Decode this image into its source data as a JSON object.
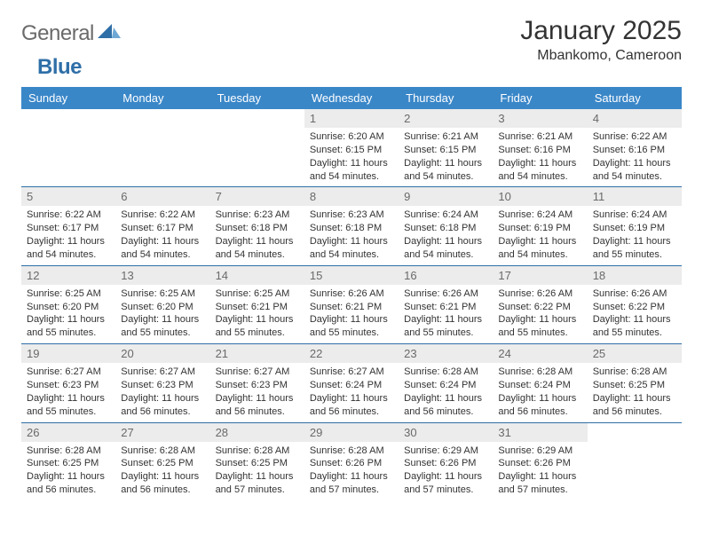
{
  "brand": {
    "word1": "General",
    "word2": "Blue"
  },
  "title": {
    "month": "January 2025",
    "location": "Mbankomo, Cameroon"
  },
  "colors": {
    "header_bg": "#3a87c8",
    "header_text": "#ffffff",
    "daynum_bg": "#ececec",
    "daynum_text": "#6a6a6a",
    "divider": "#2f6fa7",
    "body_text": "#333333",
    "logo_gray": "#6a6a6a",
    "logo_blue": "#2f6fa7"
  },
  "weekdays": [
    "Sunday",
    "Monday",
    "Tuesday",
    "Wednesday",
    "Thursday",
    "Friday",
    "Saturday"
  ],
  "weeks": [
    [
      {
        "n": "",
        "sr": "",
        "ss": "",
        "dl": ""
      },
      {
        "n": "",
        "sr": "",
        "ss": "",
        "dl": ""
      },
      {
        "n": "",
        "sr": "",
        "ss": "",
        "dl": ""
      },
      {
        "n": "1",
        "sr": "Sunrise: 6:20 AM",
        "ss": "Sunset: 6:15 PM",
        "dl": "Daylight: 11 hours and 54 minutes."
      },
      {
        "n": "2",
        "sr": "Sunrise: 6:21 AM",
        "ss": "Sunset: 6:15 PM",
        "dl": "Daylight: 11 hours and 54 minutes."
      },
      {
        "n": "3",
        "sr": "Sunrise: 6:21 AM",
        "ss": "Sunset: 6:16 PM",
        "dl": "Daylight: 11 hours and 54 minutes."
      },
      {
        "n": "4",
        "sr": "Sunrise: 6:22 AM",
        "ss": "Sunset: 6:16 PM",
        "dl": "Daylight: 11 hours and 54 minutes."
      }
    ],
    [
      {
        "n": "5",
        "sr": "Sunrise: 6:22 AM",
        "ss": "Sunset: 6:17 PM",
        "dl": "Daylight: 11 hours and 54 minutes."
      },
      {
        "n": "6",
        "sr": "Sunrise: 6:22 AM",
        "ss": "Sunset: 6:17 PM",
        "dl": "Daylight: 11 hours and 54 minutes."
      },
      {
        "n": "7",
        "sr": "Sunrise: 6:23 AM",
        "ss": "Sunset: 6:18 PM",
        "dl": "Daylight: 11 hours and 54 minutes."
      },
      {
        "n": "8",
        "sr": "Sunrise: 6:23 AM",
        "ss": "Sunset: 6:18 PM",
        "dl": "Daylight: 11 hours and 54 minutes."
      },
      {
        "n": "9",
        "sr": "Sunrise: 6:24 AM",
        "ss": "Sunset: 6:18 PM",
        "dl": "Daylight: 11 hours and 54 minutes."
      },
      {
        "n": "10",
        "sr": "Sunrise: 6:24 AM",
        "ss": "Sunset: 6:19 PM",
        "dl": "Daylight: 11 hours and 54 minutes."
      },
      {
        "n": "11",
        "sr": "Sunrise: 6:24 AM",
        "ss": "Sunset: 6:19 PM",
        "dl": "Daylight: 11 hours and 55 minutes."
      }
    ],
    [
      {
        "n": "12",
        "sr": "Sunrise: 6:25 AM",
        "ss": "Sunset: 6:20 PM",
        "dl": "Daylight: 11 hours and 55 minutes."
      },
      {
        "n": "13",
        "sr": "Sunrise: 6:25 AM",
        "ss": "Sunset: 6:20 PM",
        "dl": "Daylight: 11 hours and 55 minutes."
      },
      {
        "n": "14",
        "sr": "Sunrise: 6:25 AM",
        "ss": "Sunset: 6:21 PM",
        "dl": "Daylight: 11 hours and 55 minutes."
      },
      {
        "n": "15",
        "sr": "Sunrise: 6:26 AM",
        "ss": "Sunset: 6:21 PM",
        "dl": "Daylight: 11 hours and 55 minutes."
      },
      {
        "n": "16",
        "sr": "Sunrise: 6:26 AM",
        "ss": "Sunset: 6:21 PM",
        "dl": "Daylight: 11 hours and 55 minutes."
      },
      {
        "n": "17",
        "sr": "Sunrise: 6:26 AM",
        "ss": "Sunset: 6:22 PM",
        "dl": "Daylight: 11 hours and 55 minutes."
      },
      {
        "n": "18",
        "sr": "Sunrise: 6:26 AM",
        "ss": "Sunset: 6:22 PM",
        "dl": "Daylight: 11 hours and 55 minutes."
      }
    ],
    [
      {
        "n": "19",
        "sr": "Sunrise: 6:27 AM",
        "ss": "Sunset: 6:23 PM",
        "dl": "Daylight: 11 hours and 55 minutes."
      },
      {
        "n": "20",
        "sr": "Sunrise: 6:27 AM",
        "ss": "Sunset: 6:23 PM",
        "dl": "Daylight: 11 hours and 56 minutes."
      },
      {
        "n": "21",
        "sr": "Sunrise: 6:27 AM",
        "ss": "Sunset: 6:23 PM",
        "dl": "Daylight: 11 hours and 56 minutes."
      },
      {
        "n": "22",
        "sr": "Sunrise: 6:27 AM",
        "ss": "Sunset: 6:24 PM",
        "dl": "Daylight: 11 hours and 56 minutes."
      },
      {
        "n": "23",
        "sr": "Sunrise: 6:28 AM",
        "ss": "Sunset: 6:24 PM",
        "dl": "Daylight: 11 hours and 56 minutes."
      },
      {
        "n": "24",
        "sr": "Sunrise: 6:28 AM",
        "ss": "Sunset: 6:24 PM",
        "dl": "Daylight: 11 hours and 56 minutes."
      },
      {
        "n": "25",
        "sr": "Sunrise: 6:28 AM",
        "ss": "Sunset: 6:25 PM",
        "dl": "Daylight: 11 hours and 56 minutes."
      }
    ],
    [
      {
        "n": "26",
        "sr": "Sunrise: 6:28 AM",
        "ss": "Sunset: 6:25 PM",
        "dl": "Daylight: 11 hours and 56 minutes."
      },
      {
        "n": "27",
        "sr": "Sunrise: 6:28 AM",
        "ss": "Sunset: 6:25 PM",
        "dl": "Daylight: 11 hours and 56 minutes."
      },
      {
        "n": "28",
        "sr": "Sunrise: 6:28 AM",
        "ss": "Sunset: 6:25 PM",
        "dl": "Daylight: 11 hours and 57 minutes."
      },
      {
        "n": "29",
        "sr": "Sunrise: 6:28 AM",
        "ss": "Sunset: 6:26 PM",
        "dl": "Daylight: 11 hours and 57 minutes."
      },
      {
        "n": "30",
        "sr": "Sunrise: 6:29 AM",
        "ss": "Sunset: 6:26 PM",
        "dl": "Daylight: 11 hours and 57 minutes."
      },
      {
        "n": "31",
        "sr": "Sunrise: 6:29 AM",
        "ss": "Sunset: 6:26 PM",
        "dl": "Daylight: 11 hours and 57 minutes."
      },
      {
        "n": "",
        "sr": "",
        "ss": "",
        "dl": ""
      }
    ]
  ]
}
